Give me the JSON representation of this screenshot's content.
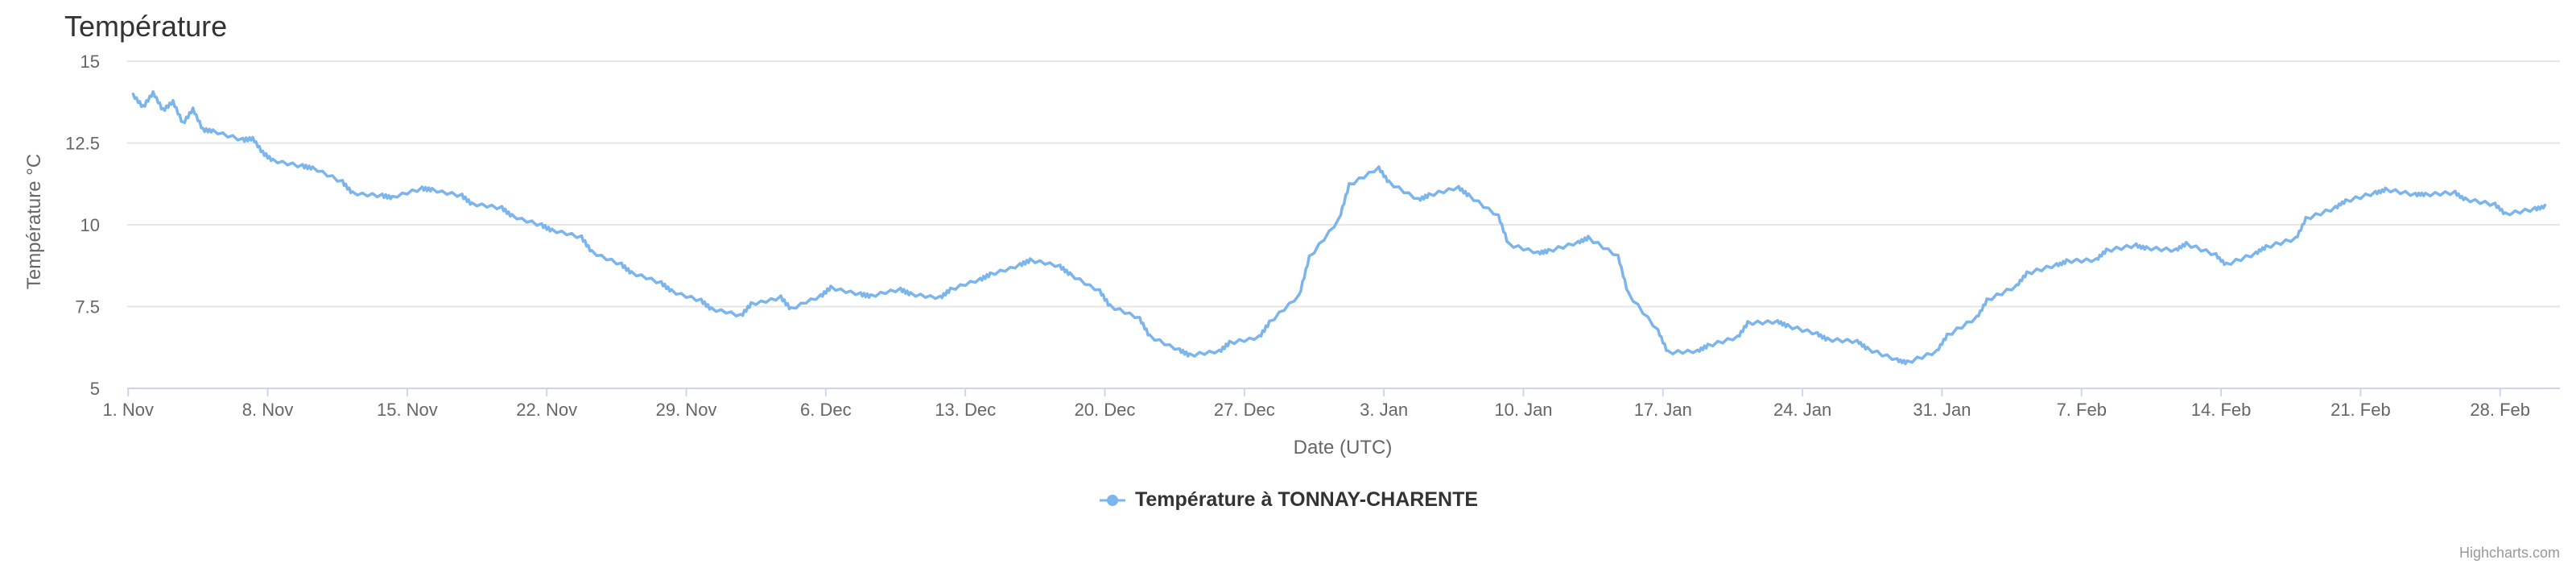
{
  "chart_data": {
    "type": "line",
    "title": "Température",
    "xlabel": "Date (UTC)",
    "ylabel": "Température °C",
    "ylim": [
      5,
      15
    ],
    "yticks": [
      5,
      7.5,
      10,
      12.5,
      15
    ],
    "xlim": [
      "2023-11-01",
      "2024-03-02"
    ],
    "xticks": [
      {
        "date": "2023-11-01",
        "label": "1. Nov"
      },
      {
        "date": "2023-11-08",
        "label": "8. Nov"
      },
      {
        "date": "2023-11-15",
        "label": "15. Nov"
      },
      {
        "date": "2023-11-22",
        "label": "22. Nov"
      },
      {
        "date": "2023-11-29",
        "label": "29. Nov"
      },
      {
        "date": "2023-12-06",
        "label": "6. Dec"
      },
      {
        "date": "2023-12-13",
        "label": "13. Dec"
      },
      {
        "date": "2023-12-20",
        "label": "20. Dec"
      },
      {
        "date": "2023-12-27",
        "label": "27. Dec"
      },
      {
        "date": "2024-01-03",
        "label": "3. Jan"
      },
      {
        "date": "2024-01-10",
        "label": "10. Jan"
      },
      {
        "date": "2024-01-17",
        "label": "17. Jan"
      },
      {
        "date": "2024-01-24",
        "label": "24. Jan"
      },
      {
        "date": "2024-01-31",
        "label": "31. Jan"
      },
      {
        "date": "2024-02-07",
        "label": "7. Feb"
      },
      {
        "date": "2024-02-14",
        "label": "14. Feb"
      },
      {
        "date": "2024-02-21",
        "label": "21. Feb"
      },
      {
        "date": "2024-02-28",
        "label": "28. Feb"
      }
    ],
    "grid": true,
    "legend_position": "bottom-center",
    "series": [
      {
        "name": "Température à TONNAY-CHARENTE",
        "color": "#7cb5ec",
        "points": [
          [
            "2023-11-01",
            14.0
          ],
          [
            "2023-11-01",
            13.6
          ],
          [
            "2023-11-02",
            14.0
          ],
          [
            "2023-11-02",
            13.5
          ],
          [
            "2023-11-03",
            13.8
          ],
          [
            "2023-11-03",
            13.1
          ],
          [
            "2023-11-04",
            13.5
          ],
          [
            "2023-11-04",
            12.9
          ],
          [
            "2023-11-05",
            12.9
          ],
          [
            "2023-11-06",
            12.6
          ],
          [
            "2023-11-07",
            12.6
          ],
          [
            "2023-11-07",
            12.2
          ],
          [
            "2023-11-08",
            12.0
          ],
          [
            "2023-11-09",
            11.8
          ],
          [
            "2023-11-10",
            11.7
          ],
          [
            "2023-11-11",
            11.3
          ],
          [
            "2023-11-12",
            11.0
          ],
          [
            "2023-11-13",
            10.9
          ],
          [
            "2023-11-14",
            10.8
          ],
          [
            "2023-11-15",
            11.1
          ],
          [
            "2023-11-16",
            11.1
          ],
          [
            "2023-11-17",
            10.9
          ],
          [
            "2023-11-18",
            10.6
          ],
          [
            "2023-11-19",
            10.5
          ],
          [
            "2023-11-20",
            10.3
          ],
          [
            "2023-11-21",
            10.0
          ],
          [
            "2023-11-22",
            9.8
          ],
          [
            "2023-11-23",
            9.6
          ],
          [
            "2023-11-24",
            9.2
          ],
          [
            "2023-11-25",
            8.8
          ],
          [
            "2023-11-26",
            8.5
          ],
          [
            "2023-11-27",
            8.2
          ],
          [
            "2023-11-28",
            8.0
          ],
          [
            "2023-11-29",
            7.7
          ],
          [
            "2023-11-30",
            7.4
          ],
          [
            "2023-12-01",
            7.2
          ],
          [
            "2023-12-02",
            7.6
          ],
          [
            "2023-12-03",
            7.8
          ],
          [
            "2023-12-04",
            7.4
          ],
          [
            "2023-12-05",
            7.8
          ],
          [
            "2023-12-06",
            8.1
          ],
          [
            "2023-12-07",
            7.9
          ],
          [
            "2023-12-08",
            7.8
          ],
          [
            "2023-12-09",
            8.0
          ],
          [
            "2023-12-10",
            7.9
          ],
          [
            "2023-12-11",
            7.8
          ],
          [
            "2023-12-12",
            8.0
          ],
          [
            "2023-12-13",
            8.3
          ],
          [
            "2023-12-14",
            8.5
          ],
          [
            "2023-12-15",
            8.8
          ],
          [
            "2023-12-16",
            8.9
          ],
          [
            "2023-12-17",
            8.7
          ],
          [
            "2023-12-18",
            8.5
          ],
          [
            "2023-12-19",
            8.0
          ],
          [
            "2023-12-20",
            7.5
          ],
          [
            "2023-12-21",
            7.1
          ],
          [
            "2023-12-22",
            6.6
          ],
          [
            "2023-12-23",
            6.2
          ],
          [
            "2023-12-24",
            6.0
          ],
          [
            "2023-12-25",
            6.1
          ],
          [
            "2023-12-26",
            6.4
          ],
          [
            "2023-12-27",
            6.6
          ],
          [
            "2023-12-28",
            7.0
          ],
          [
            "2023-12-29",
            7.8
          ],
          [
            "2023-12-30",
            9.0
          ],
          [
            "2023-12-31",
            10.2
          ],
          [
            "2024-01-01",
            11.2
          ],
          [
            "2024-01-02",
            11.7
          ],
          [
            "2024-01-03",
            11.3
          ],
          [
            "2024-01-04",
            10.8
          ],
          [
            "2024-01-05",
            10.9
          ],
          [
            "2024-01-06",
            11.1
          ],
          [
            "2024-01-07",
            10.9
          ],
          [
            "2024-01-08",
            10.3
          ],
          [
            "2024-01-09",
            9.4
          ],
          [
            "2024-01-10",
            9.1
          ],
          [
            "2024-01-11",
            9.2
          ],
          [
            "2024-01-12",
            9.5
          ],
          [
            "2024-01-13",
            9.6
          ],
          [
            "2024-01-14",
            9.0
          ],
          [
            "2024-01-15",
            7.9
          ],
          [
            "2024-01-16",
            6.8
          ],
          [
            "2024-01-17",
            6.1
          ],
          [
            "2024-01-18",
            6.1
          ],
          [
            "2024-01-19",
            6.3
          ],
          [
            "2024-01-20",
            6.6
          ],
          [
            "2024-01-21",
            7.0
          ],
          [
            "2024-01-22",
            7.0
          ],
          [
            "2024-01-23",
            6.9
          ],
          [
            "2024-01-24",
            6.7
          ],
          [
            "2024-01-25",
            6.5
          ],
          [
            "2024-01-26",
            6.4
          ],
          [
            "2024-01-27",
            6.2
          ],
          [
            "2024-01-28",
            5.9
          ],
          [
            "2024-01-29",
            5.8
          ],
          [
            "2024-01-30",
            6.1
          ],
          [
            "2024-01-31",
            6.6
          ],
          [
            "2024-02-01",
            7.2
          ],
          [
            "2024-02-02",
            7.7
          ],
          [
            "2024-02-03",
            8.1
          ],
          [
            "2024-02-04",
            8.5
          ],
          [
            "2024-02-05",
            8.8
          ],
          [
            "2024-02-06",
            8.9
          ],
          [
            "2024-02-07",
            8.9
          ],
          [
            "2024-02-08",
            9.2
          ],
          [
            "2024-02-09",
            9.4
          ],
          [
            "2024-02-10",
            9.3
          ],
          [
            "2024-02-11",
            9.2
          ],
          [
            "2024-02-12",
            9.4
          ],
          [
            "2024-02-13",
            9.1
          ],
          [
            "2024-02-14",
            8.8
          ],
          [
            "2024-02-15",
            9.1
          ],
          [
            "2024-02-16",
            9.3
          ],
          [
            "2024-02-17",
            9.6
          ],
          [
            "2024-02-18",
            10.2
          ],
          [
            "2024-02-19",
            10.5
          ],
          [
            "2024-02-20",
            10.7
          ],
          [
            "2024-02-21",
            11.0
          ],
          [
            "2024-02-22",
            11.1
          ],
          [
            "2024-02-23",
            10.9
          ],
          [
            "2024-02-24",
            10.9
          ],
          [
            "2024-02-25",
            11.0
          ],
          [
            "2024-02-26",
            10.8
          ],
          [
            "2024-02-27",
            10.6
          ],
          [
            "2024-02-28",
            10.3
          ],
          [
            "2024-02-29",
            10.5
          ],
          [
            "2024-03-01",
            10.6
          ]
        ]
      }
    ]
  },
  "credits": "Highcharts.com"
}
